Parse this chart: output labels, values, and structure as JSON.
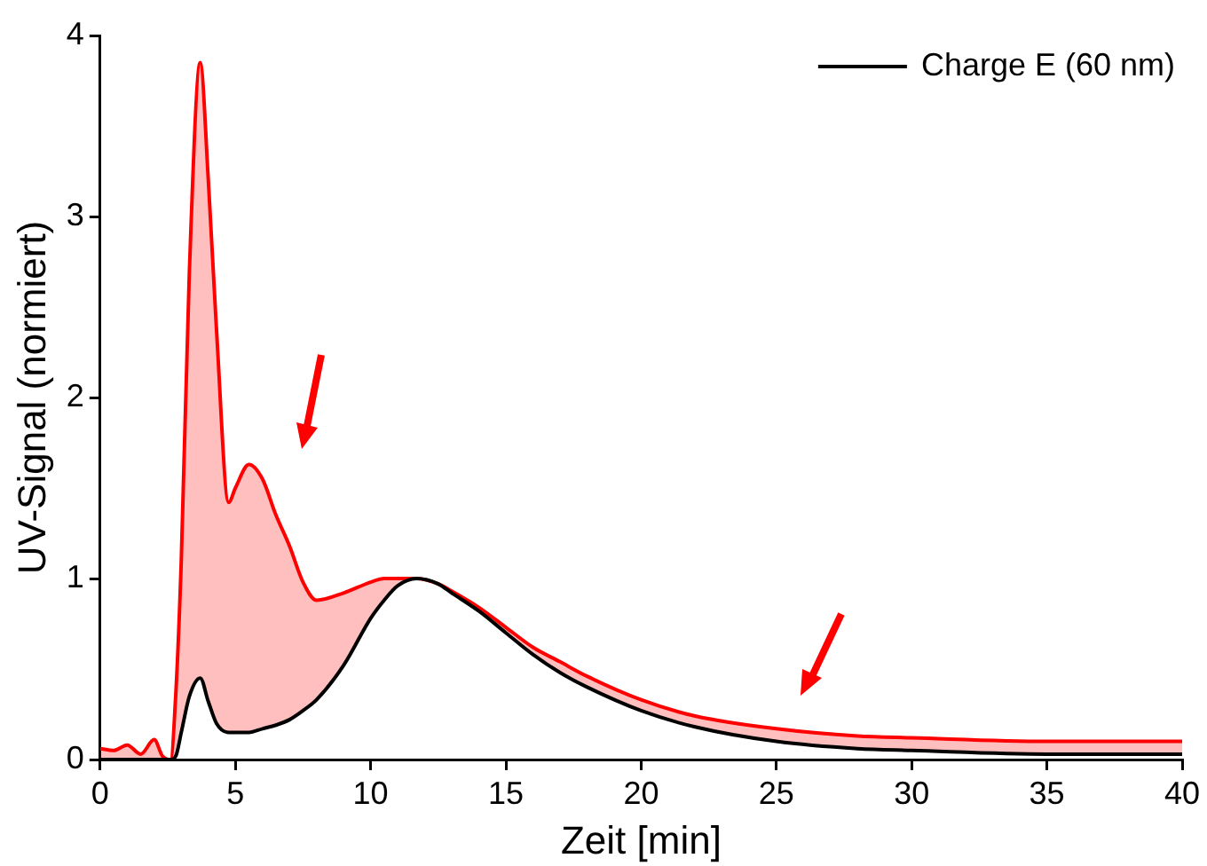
{
  "chart_data": {
    "type": "line",
    "xlabel": "Zeit [min]",
    "ylabel": "UV-Signal (normiert)",
    "x": [
      0,
      0.5,
      1,
      1.5,
      2,
      2.3,
      2.6,
      2.8,
      3,
      3.3,
      3.7,
      4,
      4.3,
      4.75,
      5,
      5.5,
      6,
      6.5,
      7,
      7.5,
      8,
      9,
      10,
      10.5,
      11,
      11.7,
      12.5,
      13,
      14,
      15,
      16,
      17,
      18,
      20,
      22,
      25,
      28,
      30,
      35,
      40
    ],
    "series": [
      {
        "name": "Charge E (60 nm)",
        "color": "#000000",
        "values": [
          0,
          0,
          0,
          0,
          0,
          0,
          0,
          0.02,
          0.15,
          0.35,
          0.45,
          0.32,
          0.2,
          0.15,
          0.15,
          0.15,
          0.17,
          0.19,
          0.22,
          0.27,
          0.33,
          0.52,
          0.78,
          0.88,
          0.96,
          1,
          0.97,
          0.92,
          0.82,
          0.7,
          0.58,
          0.48,
          0.4,
          0.27,
          0.18,
          0.1,
          0.06,
          0.05,
          0.03,
          0.03
        ]
      },
      {
        "color": "#ff0000",
        "values": [
          0.06,
          0.05,
          0.08,
          0.03,
          0.11,
          0.02,
          0,
          0.37,
          1.1,
          2.7,
          3.85,
          3.2,
          2.38,
          1.42,
          1.5,
          1.63,
          1.55,
          1.35,
          1.18,
          0.98,
          0.88,
          0.92,
          0.98,
          1,
          1,
          1,
          0.97,
          0.93,
          0.84,
          0.73,
          0.62,
          0.54,
          0.46,
          0.33,
          0.24,
          0.17,
          0.13,
          0.12,
          0.1,
          0.1
        ]
      }
    ],
    "xlim": [
      0,
      40
    ],
    "xticks": [
      0,
      5,
      10,
      15,
      20,
      25,
      30,
      35,
      40
    ],
    "ylim": [
      0,
      4
    ],
    "yticks": [
      0,
      1,
      2,
      3,
      4
    ],
    "grid": false,
    "legend": "top right",
    "marker": "none",
    "line_style": "solid"
  }
}
